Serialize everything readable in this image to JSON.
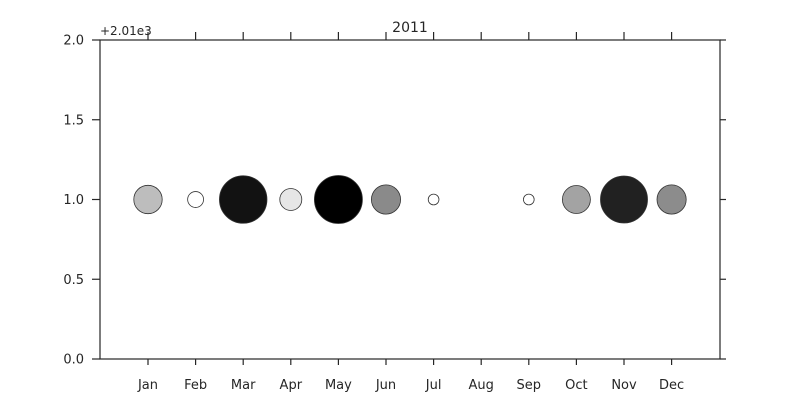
{
  "chart_data": {
    "type": "scatter",
    "title": "2011",
    "y_offset_label": "+2.01e3",
    "xlabel": "",
    "ylabel": "",
    "categories": [
      "Jan",
      "Feb",
      "Mar",
      "Apr",
      "May",
      "Jun",
      "Jul",
      "Aug",
      "Sep",
      "Oct",
      "Nov",
      "Dec"
    ],
    "y_values": [
      1.0,
      1.0,
      1.0,
      1.0,
      1.0,
      1.0,
      1.0,
      null,
      1.0,
      1.0,
      1.0,
      1.0
    ],
    "relative_size": [
      0.35,
      0.11,
      0.98,
      0.21,
      1.0,
      0.37,
      0.05,
      null,
      0.05,
      0.34,
      0.96,
      0.37
    ],
    "gray_level": [
      0.74,
      1.0,
      0.07,
      0.9,
      0.0,
      0.54,
      1.0,
      null,
      1.0,
      0.64,
      0.13,
      0.55
    ],
    "ylim": [
      0.0,
      2.0
    ],
    "y_ticks": [
      "0.0",
      "0.5",
      "1.0",
      "1.5",
      "2.0"
    ],
    "grid": false,
    "colors": {
      "edge": "#333333",
      "axis": "#262626"
    }
  }
}
